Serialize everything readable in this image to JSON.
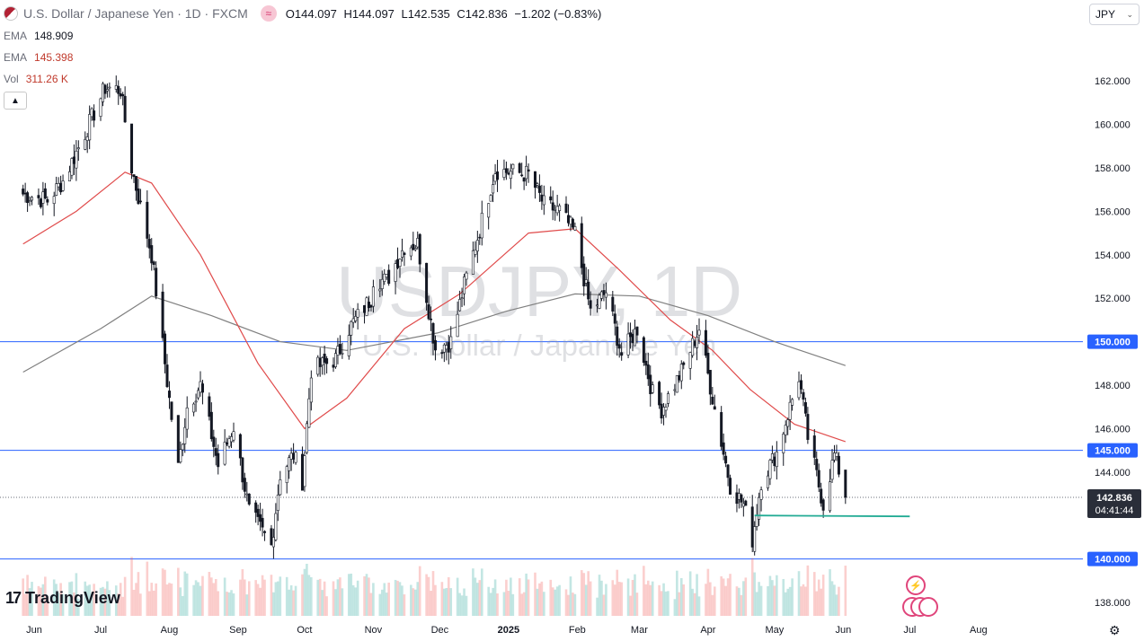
{
  "header": {
    "symbol_title": "U.S. Dollar / Japanese Yen · 1D · FXCM",
    "ohlc": [
      {
        "k": "O",
        "v": "144.097"
      },
      {
        "k": "H",
        "v": "144.097"
      },
      {
        "k": "L",
        "v": "142.535"
      },
      {
        "k": "C",
        "v": "142.836"
      }
    ],
    "change": "−1.202 (−0.83%)"
  },
  "indicators": [
    {
      "label": "EMA",
      "value": "148.909",
      "color": "#131722"
    },
    {
      "label": "EMA",
      "value": "145.398",
      "color": "#c0392b"
    },
    {
      "label": "Vol",
      "value": "311.26 K",
      "color": "#c0392b"
    }
  ],
  "currency_selector": "JPY",
  "watermark": {
    "symbol": "USDJPY, 1D",
    "name": "U.S. Dollar / Japanese Yen"
  },
  "branding": "TradingView",
  "price_badges": {
    "last": "142.836",
    "countdown": "04:41:44"
  },
  "icons": [
    "wave-icon",
    "chevron-up-icon",
    "chevron-down-icon",
    "lightning-icon",
    "flag-icon",
    "gear-icon",
    "tradingview-logo-icon"
  ],
  "colors": {
    "up": "#26a69a",
    "down": "#ef5350",
    "ema_fast": "#e04b4b",
    "ema_slow": "#808080",
    "hline": "#2962ff",
    "support": "#22ab94"
  },
  "chart_data": {
    "type": "candlestick",
    "y_ticks": [
      "162.000",
      "160.000",
      "158.000",
      "156.000",
      "154.000",
      "152.000",
      "148.000",
      "146.000",
      "144.000",
      "138.000"
    ],
    "x_ticks": [
      "Jun",
      "Jul",
      "Aug",
      "Sep",
      "Oct",
      "Nov",
      "Dec",
      "2025",
      "Feb",
      "Mar",
      "Apr",
      "May",
      "Jun",
      "Jul",
      "Aug"
    ],
    "ylim": [
      137,
      164
    ],
    "horizontal_levels": [
      {
        "value": 150.0,
        "label": "150.000"
      },
      {
        "value": 145.0,
        "label": "145.000"
      },
      {
        "value": 140.0,
        "label": "140.000"
      }
    ],
    "support_line": {
      "value": 142.0,
      "from": "2025-04-22",
      "to": "2025-07-01"
    },
    "last_price": 142.836,
    "anchors": [
      [
        "2024-05-27",
        156.8
      ],
      [
        "2024-06-07",
        156.5
      ],
      [
        "2024-06-14",
        157.4
      ],
      [
        "2024-06-24",
        159.6
      ],
      [
        "2024-07-03",
        161.7
      ],
      [
        "2024-07-10",
        161.6
      ],
      [
        "2024-07-15",
        158.0
      ],
      [
        "2024-07-24",
        154.0
      ],
      [
        "2024-08-02",
        146.5
      ],
      [
        "2024-08-05",
        144.2
      ],
      [
        "2024-08-09",
        147.0
      ],
      [
        "2024-08-15",
        148.0
      ],
      [
        "2024-08-23",
        144.3
      ],
      [
        "2024-08-30",
        146.1
      ],
      [
        "2024-09-06",
        142.2
      ],
      [
        "2024-09-16",
        140.6
      ],
      [
        "2024-09-20",
        143.9
      ],
      [
        "2024-09-26",
        144.8
      ],
      [
        "2024-09-30",
        143.6
      ],
      [
        "2024-10-04",
        148.7
      ],
      [
        "2024-10-15",
        149.2
      ],
      [
        "2024-10-21",
        150.6
      ],
      [
        "2024-10-31",
        152.0
      ],
      [
        "2024-11-01",
        152.9
      ],
      [
        "2024-11-07",
        152.8
      ],
      [
        "2024-11-15",
        154.4
      ],
      [
        "2024-11-21",
        154.5
      ],
      [
        "2024-11-29",
        149.7
      ],
      [
        "2024-12-06",
        150.0
      ],
      [
        "2024-12-12",
        152.6
      ],
      [
        "2024-12-18",
        154.8
      ],
      [
        "2024-12-26",
        157.9
      ],
      [
        "2025-01-10",
        157.7
      ],
      [
        "2025-01-17",
        156.3
      ],
      [
        "2025-01-24",
        156.0
      ],
      [
        "2025-01-31",
        155.0
      ],
      [
        "2025-02-07",
        151.4
      ],
      [
        "2025-02-14",
        152.3
      ],
      [
        "2025-02-21",
        149.4
      ],
      [
        "2025-02-28",
        150.6
      ],
      [
        "2025-03-07",
        147.6
      ],
      [
        "2025-03-11",
        146.9
      ],
      [
        "2025-03-20",
        148.6
      ],
      [
        "2025-03-28",
        150.6
      ],
      [
        "2025-04-04",
        146.9
      ],
      [
        "2025-04-11",
        143.4
      ],
      [
        "2025-04-17",
        142.5
      ],
      [
        "2025-04-21",
        140.9
      ],
      [
        "2025-04-25",
        143.6
      ],
      [
        "2025-05-02",
        144.9
      ],
      [
        "2025-05-12",
        148.4
      ],
      [
        "2025-05-16",
        145.6
      ],
      [
        "2025-05-23",
        142.5
      ],
      [
        "2025-05-28",
        144.8
      ],
      [
        "2025-05-30",
        144.1
      ],
      [
        "2025-06-02",
        142.836
      ]
    ],
    "ema_fast_anchors": [
      [
        "2024-05-27",
        154.5
      ],
      [
        "2024-06-20",
        156.0
      ],
      [
        "2024-07-12",
        157.8
      ],
      [
        "2024-07-24",
        157.3
      ],
      [
        "2024-08-15",
        154.0
      ],
      [
        "2024-09-10",
        149.0
      ],
      [
        "2024-10-01",
        146.0
      ],
      [
        "2024-10-20",
        147.4
      ],
      [
        "2024-11-15",
        150.6
      ],
      [
        "2024-12-10",
        152.2
      ],
      [
        "2025-01-10",
        155.0
      ],
      [
        "2025-01-31",
        155.2
      ],
      [
        "2025-02-20",
        153.3
      ],
      [
        "2025-03-15",
        151.0
      ],
      [
        "2025-04-03",
        149.6
      ],
      [
        "2025-04-20",
        147.8
      ],
      [
        "2025-05-10",
        146.2
      ],
      [
        "2025-06-02",
        145.4
      ]
    ],
    "ema_slow_anchors": [
      [
        "2024-05-27",
        148.6
      ],
      [
        "2024-07-01",
        150.6
      ],
      [
        "2024-07-24",
        152.1
      ],
      [
        "2024-08-20",
        151.2
      ],
      [
        "2024-09-20",
        150.0
      ],
      [
        "2024-10-20",
        149.6
      ],
      [
        "2024-11-30",
        150.4
      ],
      [
        "2024-12-31",
        151.4
      ],
      [
        "2025-01-31",
        152.2
      ],
      [
        "2025-03-01",
        152.1
      ],
      [
        "2025-04-01",
        151.2
      ],
      [
        "2025-05-01",
        150.0
      ],
      [
        "2025-06-02",
        148.9
      ]
    ]
  }
}
